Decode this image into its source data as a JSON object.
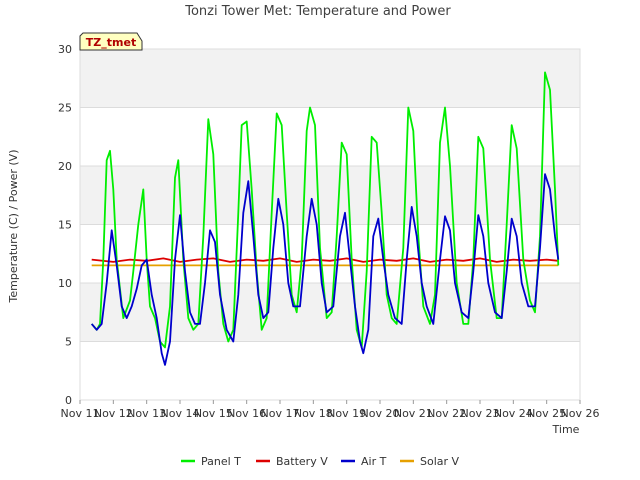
{
  "chart_data": {
    "type": "line",
    "title": "Tonzi Tower Met: Temperature and Power",
    "badge": "TZ_tmet",
    "xlabel": "Time",
    "ylabel": "Temperature (C) / Power (V)",
    "xlim": [
      11,
      26
    ],
    "ylim": [
      0,
      30
    ],
    "x_ticks": [
      11,
      12,
      13,
      14,
      15,
      16,
      17,
      18,
      19,
      20,
      21,
      22,
      23,
      24,
      25,
      26
    ],
    "x_tick_labels": [
      "Nov 11",
      "Nov 12",
      "Nov 13",
      "Nov 14",
      "Nov 15",
      "Nov 16",
      "Nov 17",
      "Nov 18",
      "Nov 19",
      "Nov 20",
      "Nov 21",
      "Nov 22",
      "Nov 23",
      "Nov 24",
      "Nov 25",
      "Nov 26"
    ],
    "y_ticks": [
      0,
      5,
      10,
      15,
      20,
      25,
      30
    ],
    "y_tick_labels": [
      "0",
      "5",
      "10",
      "15",
      "20",
      "25",
      "30"
    ],
    "grid": true,
    "legend_position": "bottom",
    "series": [
      {
        "name": "Panel T",
        "color": "#00ee00",
        "x": [
          11.35,
          11.5,
          11.6,
          11.7,
          11.8,
          11.9,
          12.0,
          12.1,
          12.3,
          12.5,
          12.6,
          12.75,
          12.9,
          13.0,
          13.1,
          13.25,
          13.4,
          13.55,
          13.7,
          13.85,
          13.95,
          14.1,
          14.25,
          14.4,
          14.55,
          14.7,
          14.85,
          15.0,
          15.15,
          15.3,
          15.45,
          15.6,
          15.75,
          15.85,
          16.0,
          16.15,
          16.3,
          16.45,
          16.6,
          16.75,
          16.9,
          17.05,
          17.2,
          17.35,
          17.5,
          17.65,
          17.8,
          17.9,
          18.05,
          18.2,
          18.4,
          18.55,
          18.7,
          18.85,
          19.0,
          19.15,
          19.3,
          19.45,
          19.6,
          19.75,
          19.9,
          20.05,
          20.2,
          20.35,
          20.5,
          20.7,
          20.85,
          21.0,
          21.15,
          21.3,
          21.5,
          21.65,
          21.8,
          21.95,
          22.1,
          22.3,
          22.5,
          22.65,
          22.8,
          22.95,
          23.1,
          23.3,
          23.5,
          23.65,
          23.8,
          23.95,
          24.1,
          24.3,
          24.5,
          24.65,
          24.8,
          24.95,
          25.1,
          25.25,
          25.35
        ],
        "y": [
          6.5,
          6.0,
          6.5,
          12.0,
          20.5,
          21.3,
          18.0,
          12.0,
          7.0,
          8.5,
          11.0,
          15.0,
          18.0,
          12.0,
          8.0,
          7.0,
          5.0,
          4.5,
          8.0,
          19.0,
          20.5,
          12.0,
          7.0,
          6.0,
          6.5,
          14.0,
          24.0,
          21.0,
          11.0,
          6.5,
          5.0,
          6.0,
          16.0,
          23.5,
          23.8,
          18.0,
          11.0,
          6.0,
          7.0,
          16.0,
          24.5,
          23.5,
          16.0,
          9.0,
          7.5,
          12.0,
          23.0,
          25.0,
          23.5,
          13.0,
          7.0,
          7.5,
          14.0,
          22.0,
          21.0,
          12.0,
          6.0,
          4.5,
          11.0,
          22.5,
          22.0,
          16.0,
          9.0,
          7.0,
          6.5,
          13.0,
          25.0,
          23.0,
          14.0,
          8.0,
          6.5,
          9.0,
          22.0,
          25.0,
          20.0,
          10.0,
          6.5,
          6.5,
          12.0,
          22.5,
          21.5,
          12.0,
          7.0,
          7.0,
          15.0,
          23.5,
          21.5,
          12.0,
          8.5,
          7.5,
          14.0,
          28.0,
          26.5,
          18.0,
          11.5
        ]
      },
      {
        "name": "Battery V",
        "color": "#dd0000",
        "x": [
          11.35,
          12.0,
          12.5,
          13.0,
          13.5,
          14.0,
          14.5,
          15.0,
          15.5,
          16.0,
          16.5,
          17.0,
          17.5,
          18.0,
          18.5,
          19.0,
          19.5,
          20.0,
          20.5,
          21.0,
          21.5,
          22.0,
          22.5,
          23.0,
          23.5,
          24.0,
          24.5,
          25.0,
          25.35
        ],
        "y": [
          12.0,
          11.8,
          12.0,
          11.9,
          12.1,
          11.8,
          12.0,
          12.1,
          11.8,
          12.0,
          11.9,
          12.1,
          11.8,
          12.0,
          11.9,
          12.1,
          11.8,
          12.0,
          11.9,
          12.1,
          11.8,
          12.0,
          11.9,
          12.1,
          11.8,
          12.0,
          11.9,
          12.0,
          11.9
        ]
      },
      {
        "name": "Air T",
        "color": "#0000cc",
        "x": [
          11.35,
          11.5,
          11.65,
          11.8,
          11.95,
          12.1,
          12.25,
          12.4,
          12.55,
          12.7,
          12.85,
          13.0,
          13.15,
          13.3,
          13.45,
          13.55,
          13.7,
          13.85,
          14.0,
          14.15,
          14.3,
          14.45,
          14.6,
          14.75,
          14.9,
          15.05,
          15.2,
          15.4,
          15.6,
          15.75,
          15.9,
          16.05,
          16.2,
          16.35,
          16.5,
          16.65,
          16.8,
          16.95,
          17.1,
          17.25,
          17.4,
          17.6,
          17.8,
          17.95,
          18.1,
          18.25,
          18.4,
          18.6,
          18.8,
          18.95,
          19.1,
          19.25,
          19.4,
          19.5,
          19.65,
          19.8,
          19.95,
          20.1,
          20.25,
          20.45,
          20.65,
          20.8,
          20.95,
          21.1,
          21.25,
          21.4,
          21.6,
          21.8,
          21.95,
          22.1,
          22.25,
          22.45,
          22.65,
          22.8,
          22.95,
          23.1,
          23.25,
          23.45,
          23.65,
          23.8,
          23.95,
          24.1,
          24.25,
          24.45,
          24.65,
          24.8,
          24.95,
          25.1,
          25.25,
          25.35
        ],
        "y": [
          6.5,
          6.0,
          6.5,
          10.0,
          14.5,
          11.5,
          8.0,
          7.0,
          8.0,
          9.5,
          11.5,
          12.0,
          9.0,
          7.0,
          4.0,
          3.0,
          5.0,
          12.0,
          15.8,
          11.0,
          7.5,
          6.5,
          6.5,
          10.0,
          14.5,
          13.5,
          9.0,
          6.0,
          5.0,
          9.0,
          16.0,
          18.7,
          14.0,
          9.0,
          7.0,
          7.5,
          13.0,
          17.2,
          15.0,
          10.0,
          8.0,
          8.0,
          14.0,
          17.2,
          15.0,
          10.0,
          7.5,
          8.0,
          14.0,
          16.0,
          12.0,
          8.0,
          5.0,
          4.0,
          6.0,
          14.0,
          15.5,
          12.0,
          9.0,
          7.0,
          6.5,
          12.0,
          16.5,
          14.0,
          10.0,
          8.0,
          6.5,
          12.0,
          15.7,
          14.5,
          10.0,
          7.5,
          7.0,
          11.0,
          15.8,
          14.0,
          10.0,
          7.5,
          7.0,
          11.0,
          15.5,
          14.0,
          10.0,
          8.0,
          8.0,
          13.0,
          19.3,
          18.0,
          14.0,
          12.0
        ]
      },
      {
        "name": "Solar V",
        "color": "#e6a000",
        "x": [
          11.35,
          13.0,
          15.0,
          17.0,
          19.0,
          21.0,
          23.0,
          25.35
        ],
        "y": [
          11.5,
          11.5,
          11.5,
          11.5,
          11.5,
          11.5,
          11.5,
          11.5
        ]
      }
    ]
  }
}
